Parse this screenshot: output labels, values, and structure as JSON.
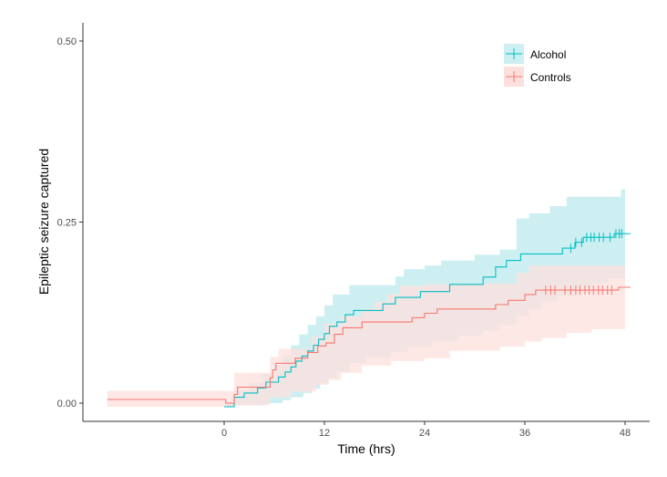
{
  "chart_data": {
    "type": "line",
    "title": "",
    "xlabel": "Time (hrs)",
    "ylabel": "Epileptic seizure captured",
    "xlim": [
      -17,
      51
    ],
    "ylim": [
      -0.025,
      0.525
    ],
    "x_ticks": [
      0,
      12,
      24,
      36,
      48
    ],
    "x_tick_labels": [
      "0",
      "12",
      "24",
      "36",
      "48"
    ],
    "y_ticks": [
      0.0,
      0.25,
      0.5
    ],
    "y_tick_labels": [
      "0.00",
      "0.25",
      "0.50"
    ],
    "grid": false,
    "legend_position": "top-right",
    "series": [
      {
        "name": "Alcohol",
        "color": "#00BFC4",
        "fill": "#cdeff2",
        "steps": [
          [
            0,
            -0.005
          ],
          [
            1.2,
            0.008
          ],
          [
            2.4,
            0.014
          ],
          [
            4.0,
            0.021
          ],
          [
            5.0,
            0.029
          ],
          [
            6.5,
            0.036
          ],
          [
            7.3,
            0.043
          ],
          [
            8.0,
            0.05
          ],
          [
            8.6,
            0.058
          ],
          [
            9.3,
            0.065
          ],
          [
            10,
            0.072
          ],
          [
            10.7,
            0.08
          ],
          [
            11.3,
            0.088
          ],
          [
            12,
            0.096
          ],
          [
            12.6,
            0.106
          ],
          [
            13.5,
            0.112
          ],
          [
            14.5,
            0.122
          ],
          [
            15.5,
            0.128
          ],
          [
            19,
            0.137
          ],
          [
            20.5,
            0.146
          ],
          [
            23.5,
            0.154
          ],
          [
            27,
            0.164
          ],
          [
            31,
            0.174
          ],
          [
            32.5,
            0.188
          ],
          [
            33.8,
            0.197
          ],
          [
            35.5,
            0.206
          ],
          [
            40.5,
            0.214
          ],
          [
            42,
            0.222
          ],
          [
            43,
            0.229
          ],
          [
            46.7,
            0.234
          ],
          [
            48,
            0.234
          ]
        ],
        "upper": [
          [
            0,
            0.0
          ],
          [
            1.2,
            0.018
          ],
          [
            3,
            0.028
          ],
          [
            4.5,
            0.04
          ],
          [
            6,
            0.052
          ],
          [
            7,
            0.065
          ],
          [
            8,
            0.08
          ],
          [
            9,
            0.095
          ],
          [
            10,
            0.108
          ],
          [
            11,
            0.12
          ],
          [
            12,
            0.135
          ],
          [
            13,
            0.15
          ],
          [
            15,
            0.163
          ],
          [
            20.5,
            0.175
          ],
          [
            21.5,
            0.185
          ],
          [
            24,
            0.19
          ],
          [
            26,
            0.197
          ],
          [
            30,
            0.205
          ],
          [
            33,
            0.212
          ],
          [
            35,
            0.255
          ],
          [
            36.5,
            0.262
          ],
          [
            39,
            0.272
          ],
          [
            41,
            0.285
          ],
          [
            47.5,
            0.295
          ],
          [
            48,
            0.295
          ]
        ],
        "lower": [
          [
            0,
            -0.005
          ],
          [
            1.2,
            -0.003
          ],
          [
            5,
            0.0
          ],
          [
            7,
            0.004
          ],
          [
            8,
            0.008
          ],
          [
            9.5,
            0.014
          ],
          [
            10.5,
            0.02
          ],
          [
            11.5,
            0.028
          ],
          [
            12.5,
            0.035
          ],
          [
            13.5,
            0.044
          ],
          [
            15,
            0.055
          ],
          [
            17,
            0.063
          ],
          [
            20,
            0.07
          ],
          [
            22,
            0.078
          ],
          [
            25,
            0.085
          ],
          [
            28,
            0.093
          ],
          [
            31,
            0.1
          ],
          [
            33,
            0.108
          ],
          [
            35,
            0.12
          ],
          [
            36.5,
            0.13
          ],
          [
            38,
            0.14
          ],
          [
            40,
            0.148
          ],
          [
            42,
            0.158
          ],
          [
            44,
            0.165
          ],
          [
            46,
            0.172
          ],
          [
            48,
            0.172
          ]
        ],
        "censor_times": [
          41.5,
          42.1,
          42.8,
          43.4,
          43.9,
          44.3,
          44.9,
          45.4,
          46.2,
          46.9,
          47.3,
          47.6
        ]
      },
      {
        "name": "Controls",
        "color": "#F8766D",
        "fill": "#fde0dd",
        "steps": [
          [
            -14,
            0.005
          ],
          [
            0,
            0.005
          ],
          [
            0.2,
            0.0
          ],
          [
            0.9,
            0.0
          ],
          [
            1.2,
            0.012
          ],
          [
            1.6,
            0.022
          ],
          [
            5.5,
            0.035
          ],
          [
            5.8,
            0.046
          ],
          [
            6.2,
            0.055
          ],
          [
            8.5,
            0.062
          ],
          [
            10,
            0.07
          ],
          [
            11.2,
            0.079
          ],
          [
            12.2,
            0.083
          ],
          [
            13.2,
            0.095
          ],
          [
            14.2,
            0.104
          ],
          [
            16.5,
            0.112
          ],
          [
            22.5,
            0.118
          ],
          [
            24,
            0.124
          ],
          [
            25.5,
            0.13
          ],
          [
            32.5,
            0.136
          ],
          [
            34,
            0.142
          ],
          [
            36,
            0.15
          ],
          [
            37.3,
            0.156
          ],
          [
            47.2,
            0.16
          ],
          [
            48,
            0.16
          ]
        ],
        "upper": [
          [
            -14,
            0.017
          ],
          [
            0,
            0.017
          ],
          [
            1.2,
            0.042
          ],
          [
            5.5,
            0.064
          ],
          [
            6.5,
            0.075
          ],
          [
            10.5,
            0.092
          ],
          [
            12,
            0.11
          ],
          [
            14,
            0.12
          ],
          [
            16.5,
            0.13
          ],
          [
            18,
            0.14
          ],
          [
            19.5,
            0.15
          ],
          [
            21,
            0.162
          ],
          [
            24,
            0.164
          ],
          [
            28,
            0.165
          ],
          [
            35,
            0.18
          ],
          [
            36.5,
            0.19
          ],
          [
            48,
            0.205
          ]
        ],
        "lower": [
          [
            -14,
            -0.005
          ],
          [
            0,
            -0.005
          ],
          [
            1.2,
            -0.003
          ],
          [
            5.5,
            0.008
          ],
          [
            8,
            0.016
          ],
          [
            11,
            0.025
          ],
          [
            12.5,
            0.032
          ],
          [
            14,
            0.042
          ],
          [
            16.5,
            0.052
          ],
          [
            20,
            0.058
          ],
          [
            24,
            0.062
          ],
          [
            27,
            0.072
          ],
          [
            33,
            0.078
          ],
          [
            36,
            0.085
          ],
          [
            38,
            0.09
          ],
          [
            41,
            0.097
          ],
          [
            44,
            0.102
          ],
          [
            48,
            0.102
          ]
        ],
        "censor_times": [
          38.5,
          39.1,
          39.6,
          40.8,
          41.5,
          42.1,
          42.6,
          43.2,
          43.7,
          44.2,
          44.8,
          45.3,
          45.9,
          46.4
        ]
      }
    ]
  }
}
